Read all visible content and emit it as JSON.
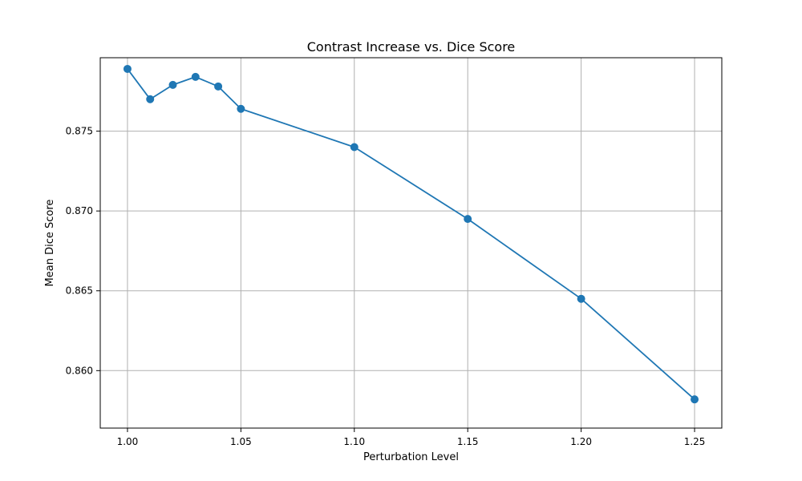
{
  "chart_data": {
    "type": "line",
    "title": "Contrast Increase vs. Dice Score",
    "xlabel": "Perturbation Level",
    "ylabel": "Mean Dice Score",
    "x": [
      1.0,
      1.01,
      1.02,
      1.03,
      1.04,
      1.05,
      1.1,
      1.15,
      1.2,
      1.25
    ],
    "series": [
      {
        "values": [
          0.8789,
          0.877,
          0.8779,
          0.8784,
          0.8778,
          0.8764,
          0.874,
          0.8695,
          0.8645,
          0.8582
        ]
      }
    ],
    "xlim": [
      0.988,
      1.262
    ],
    "ylim": [
      0.8564,
      0.8796
    ],
    "x_ticks": [
      1.0,
      1.05,
      1.1,
      1.15,
      1.2,
      1.25
    ],
    "x_tick_labels": [
      "1.00",
      "1.05",
      "1.10",
      "1.15",
      "1.20",
      "1.25"
    ],
    "y_ticks": [
      0.86,
      0.865,
      0.87,
      0.875
    ],
    "y_tick_labels": [
      "0.860",
      "0.865",
      "0.870",
      "0.875"
    ],
    "grid": true,
    "line_color": "#1f77b4",
    "marker": "circle"
  }
}
